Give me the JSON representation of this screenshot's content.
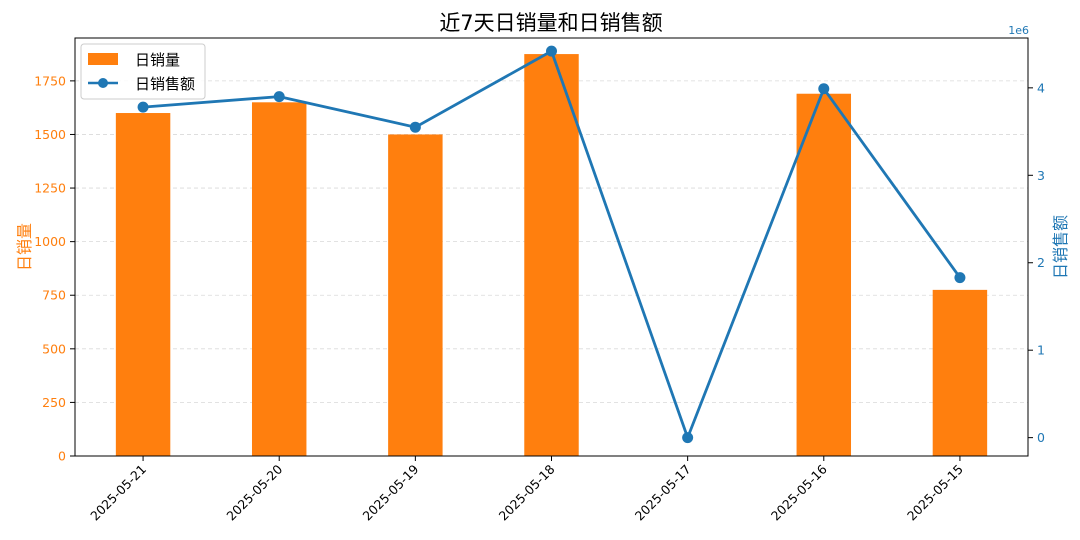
{
  "chart_data": {
    "type": "bar+line",
    "title": "近7天日销量和日销售额",
    "categories": [
      "2025-05-21",
      "2025-05-20",
      "2025-05-19",
      "2025-05-18",
      "2025-05-17",
      "2025-05-16",
      "2025-05-15"
    ],
    "series": [
      {
        "name": "日销量",
        "type": "bar",
        "axis": "left",
        "color": "#ff7f0e",
        "values": [
          1600,
          1650,
          1500,
          1875,
          0,
          1690,
          775
        ]
      },
      {
        "name": "日销售额",
        "type": "line",
        "axis": "right",
        "color": "#1f77b4",
        "marker": "circle",
        "values": [
          3780000,
          3900000,
          3550000,
          4420000,
          0,
          3990000,
          1830000
        ]
      }
    ],
    "y_left": {
      "label": "日销量",
      "color": "#ff7f0e",
      "lim": [
        0,
        1950
      ],
      "ticks": [
        0,
        250,
        500,
        750,
        1000,
        1250,
        1500,
        1750
      ]
    },
    "y_right": {
      "label": "日销售额",
      "color": "#1f77b4",
      "lim": [
        -210000,
        4570000
      ],
      "ticks": [
        0,
        1000000,
        2000000,
        3000000,
        4000000
      ],
      "tick_labels": [
        "0",
        "1",
        "2",
        "3",
        "4"
      ],
      "offset_text": "1e6"
    },
    "xtick_rotation": 45,
    "grid": "horizontal-dashed",
    "legend": "top-left"
  }
}
